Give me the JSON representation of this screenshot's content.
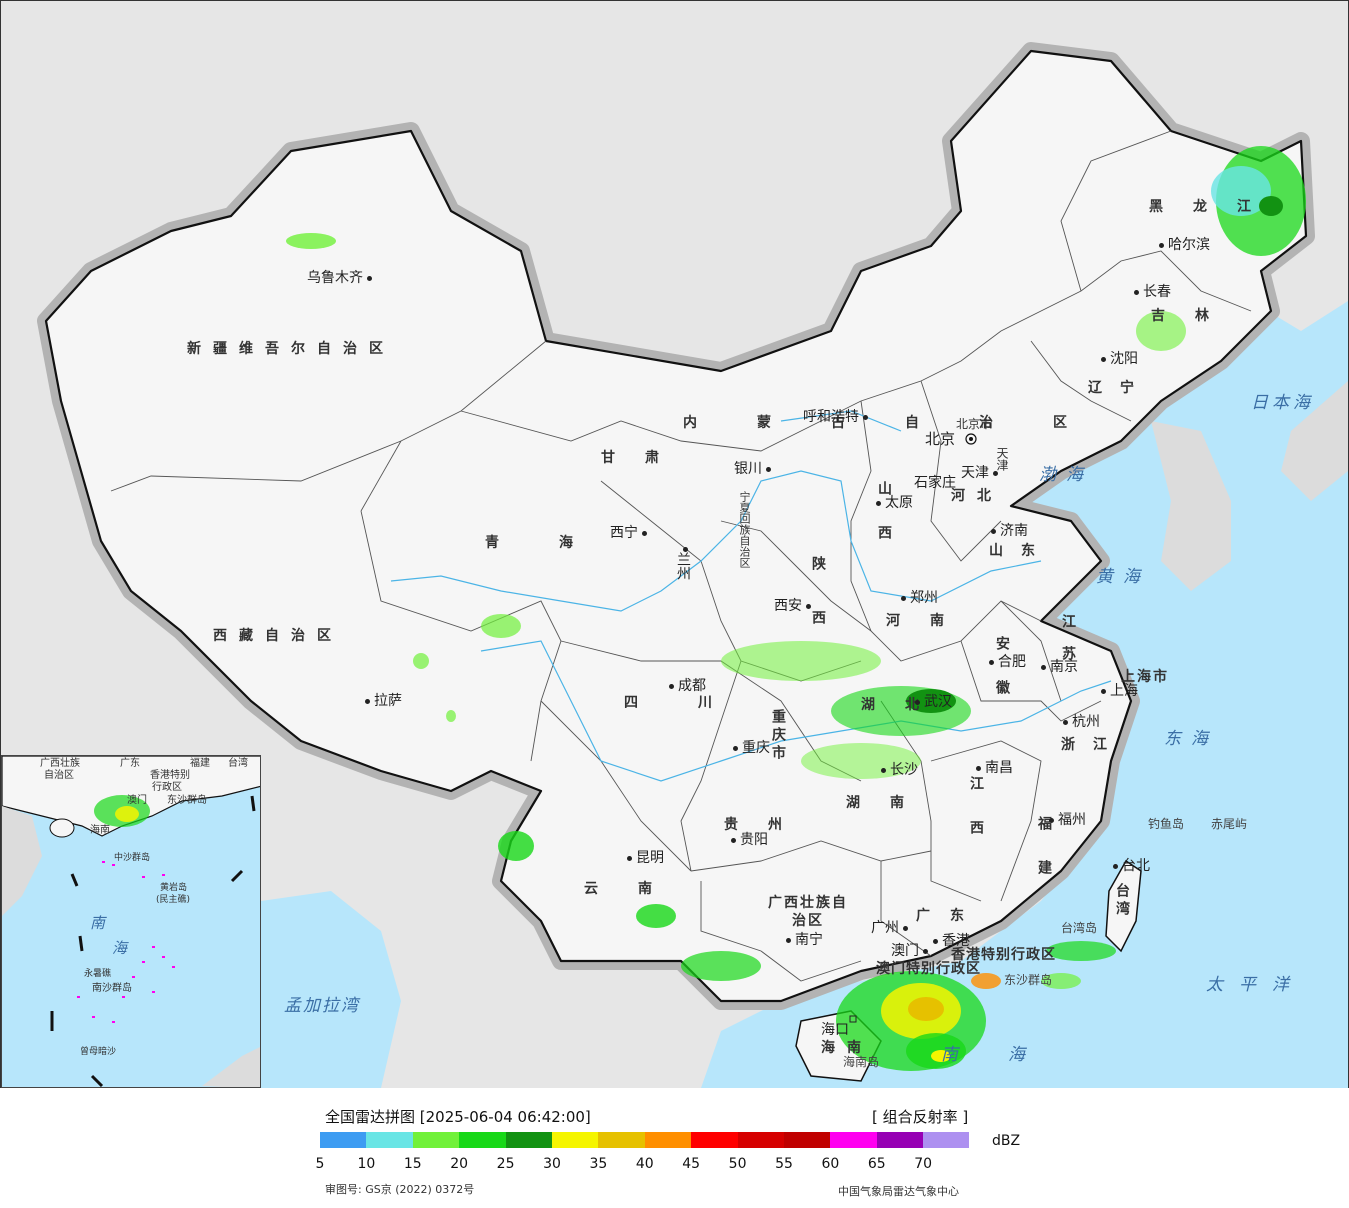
{
  "map": {
    "provinces": [
      {
        "name": "新疆维吾尔自治区"
      },
      {
        "name": "西藏自治区"
      },
      {
        "name": "青海"
      },
      {
        "name": "甘肃"
      },
      {
        "name": "内蒙古自治区"
      },
      {
        "name": "黑龙江"
      },
      {
        "name": "吉林"
      },
      {
        "name": "辽宁"
      },
      {
        "name": "河北"
      },
      {
        "name": "山西"
      },
      {
        "name": "陕西"
      },
      {
        "name": "河南"
      },
      {
        "name": "山东"
      },
      {
        "name": "江苏"
      },
      {
        "name": "安徽"
      },
      {
        "name": "浙江"
      },
      {
        "name": "湖北"
      },
      {
        "name": "湖南"
      },
      {
        "name": "江西"
      },
      {
        "name": "福建"
      },
      {
        "name": "四川"
      },
      {
        "name": "重庆市"
      },
      {
        "name": "贵州"
      },
      {
        "name": "云南"
      },
      {
        "name": "广西壮族自治区"
      },
      {
        "name": "广东"
      },
      {
        "name": "海南"
      },
      {
        "name": "台湾"
      },
      {
        "name": "上海市"
      },
      {
        "name": "北京市"
      },
      {
        "name": "天津"
      },
      {
        "name": "宁夏回族自治区"
      },
      {
        "name": "香港特别行政区"
      },
      {
        "name": "澳门特别行政区"
      }
    ],
    "cities": [
      "乌鲁木齐",
      "拉萨",
      "西宁",
      "兰州",
      "银川",
      "呼和浩特",
      "北京",
      "天津",
      "石家庄",
      "太原",
      "济南",
      "郑州",
      "西安",
      "成都",
      "重庆",
      "贵阳",
      "昆明",
      "南宁",
      "广州",
      "香港",
      "澳门",
      "海口",
      "长沙",
      "武汉",
      "南昌",
      "合肥",
      "南京",
      "上海",
      "杭州",
      "福州",
      "台北",
      "沈阳",
      "长春",
      "哈尔滨"
    ],
    "seas": [
      "渤海",
      "黄海",
      "东海",
      "日本海",
      "太平洋",
      "南海",
      "孟加拉湾"
    ],
    "islands": [
      "钓鱼岛",
      "赤尾屿",
      "台湾岛",
      "海南岛",
      "东沙群岛"
    ],
    "inset": {
      "labels": [
        "广西壮族",
        "自治区",
        "广东",
        "福建",
        "台湾",
        "香港特别",
        "行政区",
        "澳门",
        "海南",
        "东沙群岛",
        "中沙群岛",
        "黄岩岛",
        "(民主礁)",
        "南",
        "海",
        "永暑礁",
        "南沙群岛",
        "曾母暗沙"
      ]
    }
  },
  "legend": {
    "title": "全国雷达拼图 [2025-06-04 06:42:00]",
    "product": "[ 组合反射率 ]",
    "unit": "dBZ",
    "colors": [
      "#3d9cf2",
      "#69e5e5",
      "#71f13a",
      "#18d818",
      "#129212",
      "#f5f500",
      "#e6c100",
      "#ff8f00",
      "#ff0000",
      "#d60000",
      "#c00000",
      "#ff00f0",
      "#9700b4",
      "#ad90f0"
    ],
    "ticks": [
      "5",
      "10",
      "15",
      "20",
      "25",
      "30",
      "35",
      "40",
      "45",
      "50",
      "55",
      "60",
      "65",
      "70"
    ],
    "left_note": "审图号: GS京 (2022) 0372号",
    "right_note": "中国气象局雷达气象中心"
  }
}
